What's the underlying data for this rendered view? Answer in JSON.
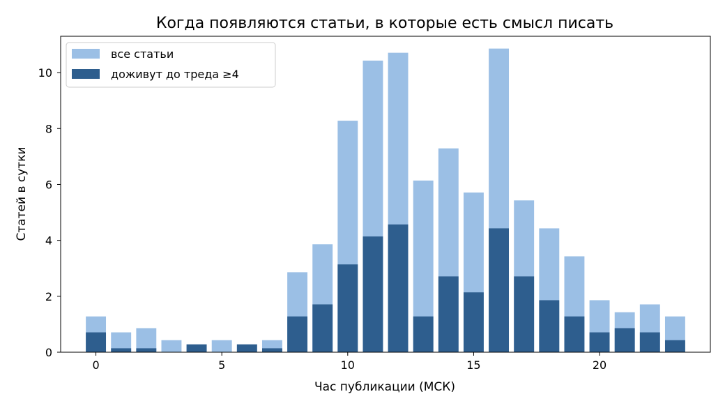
{
  "chart_data": {
    "type": "bar",
    "title": "Когда появляются статьи, в которые есть смысл писать",
    "xlabel": "Час публикации (МСК)",
    "ylabel": "Статей в сутки",
    "x": [
      0,
      1,
      2,
      3,
      4,
      5,
      6,
      7,
      8,
      9,
      10,
      11,
      12,
      13,
      14,
      15,
      16,
      17,
      18,
      19,
      20,
      21,
      22,
      23
    ],
    "xlim": [
      -1.4,
      24.4
    ],
    "ylim": [
      0,
      11.3
    ],
    "xticks": [
      0,
      5,
      10,
      15,
      20
    ],
    "yticks": [
      0,
      2,
      4,
      6,
      8,
      10
    ],
    "grid": false,
    "legend_position": "top-left",
    "series": [
      {
        "name": "все статьи",
        "color": "#9bbfe5",
        "values": [
          1.28,
          0.71,
          0.86,
          0.43,
          0.28,
          0.43,
          0.28,
          0.43,
          2.86,
          3.86,
          8.28,
          10.43,
          10.71,
          6.14,
          7.29,
          5.71,
          10.86,
          5.43,
          4.43,
          3.43,
          1.86,
          1.43,
          1.71,
          1.28
        ]
      },
      {
        "name": "доживут до треда ≥4",
        "color": "#2e5e8e",
        "values": [
          0.71,
          0.14,
          0.14,
          0,
          0.28,
          0,
          0.28,
          0.14,
          1.28,
          1.71,
          3.14,
          4.14,
          4.57,
          1.28,
          2.71,
          2.14,
          4.43,
          2.71,
          1.86,
          1.28,
          0.71,
          0.86,
          0.71,
          0.43
        ]
      }
    ]
  }
}
